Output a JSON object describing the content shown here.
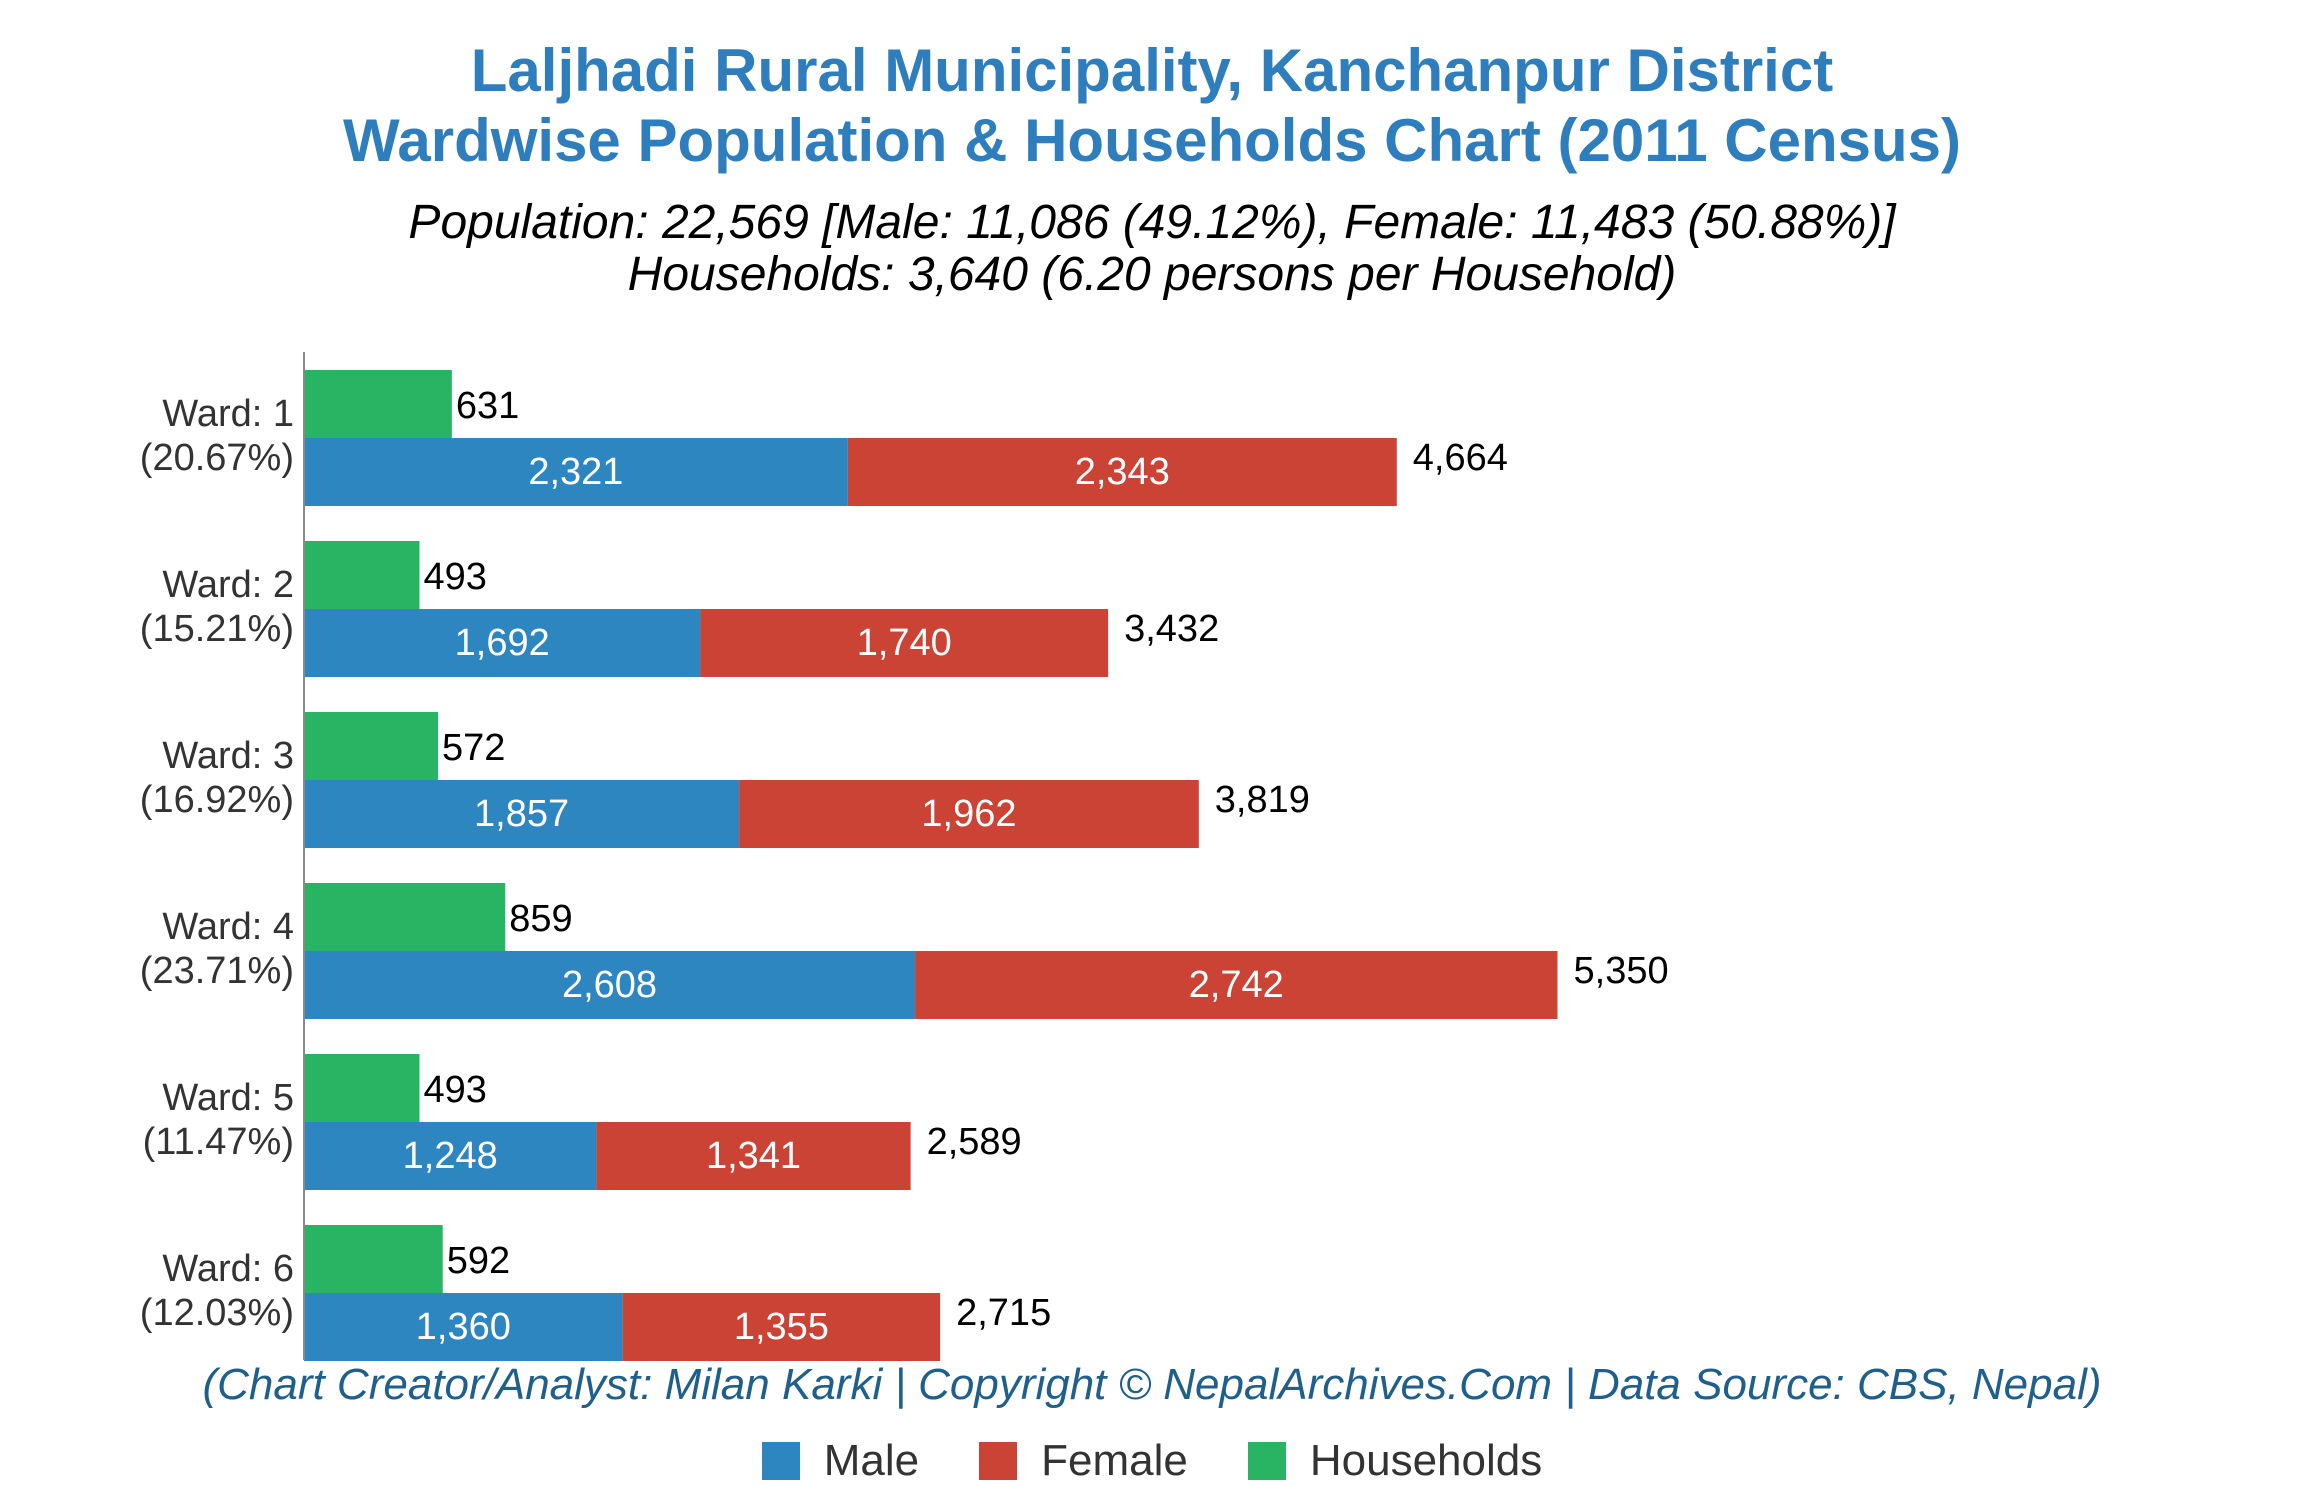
{
  "chart_data": {
    "type": "bar",
    "title": "Laljhadi Rural Municipality, Kanchanpur District",
    "title_line2": "Wardwise Population & Households Chart (2011 Census)",
    "subtitle": "Population: 22,569 [Male: 11,086 (49.12%), Female: 11,483 (50.88%)]",
    "subtitle_line2": "Households: 3,640 (6.20 persons per Household)",
    "credit": "(Chart Creator/Analyst: Milan Karki | Copyright © NepalArchives.Com | Data Source: CBS, Nepal)",
    "orientation": "horizontal",
    "stacked_series": [
      "Male",
      "Female"
    ],
    "categories": [
      {
        "label": "Ward: 1",
        "share": "(20.67%)"
      },
      {
        "label": "Ward: 2",
        "share": "(15.21%)"
      },
      {
        "label": "Ward: 3",
        "share": "(16.92%)"
      },
      {
        "label": "Ward: 4",
        "share": "(23.71%)"
      },
      {
        "label": "Ward: 5",
        "share": "(11.47%)"
      },
      {
        "label": "Ward: 6",
        "share": "(12.03%)"
      }
    ],
    "series": [
      {
        "name": "Male",
        "color": "#2e86c1",
        "values": [
          2321,
          1692,
          1857,
          2608,
          1248,
          1360
        ],
        "labels": [
          "2,321",
          "1,692",
          "1,857",
          "2,608",
          "1,248",
          "1,360"
        ]
      },
      {
        "name": "Female",
        "color": "#cb4335",
        "values": [
          2343,
          1740,
          1962,
          2742,
          1341,
          1355
        ],
        "labels": [
          "2,343",
          "1,740",
          "1,962",
          "2,742",
          "1,341",
          "1,355"
        ]
      },
      {
        "name": "Households",
        "color": "#28b463",
        "values": [
          631,
          493,
          572,
          859,
          493,
          592
        ],
        "labels": [
          "631",
          "493",
          "572",
          "859",
          "493",
          "592"
        ]
      }
    ],
    "totals": [
      4664,
      3432,
      3819,
      5350,
      2589,
      2715
    ],
    "total_labels": [
      "4,664",
      "3,432",
      "3,819",
      "5,350",
      "2,589",
      "2,715"
    ],
    "xlim": [
      0,
      5500
    ],
    "grid": false,
    "legend": "bottom-center"
  }
}
